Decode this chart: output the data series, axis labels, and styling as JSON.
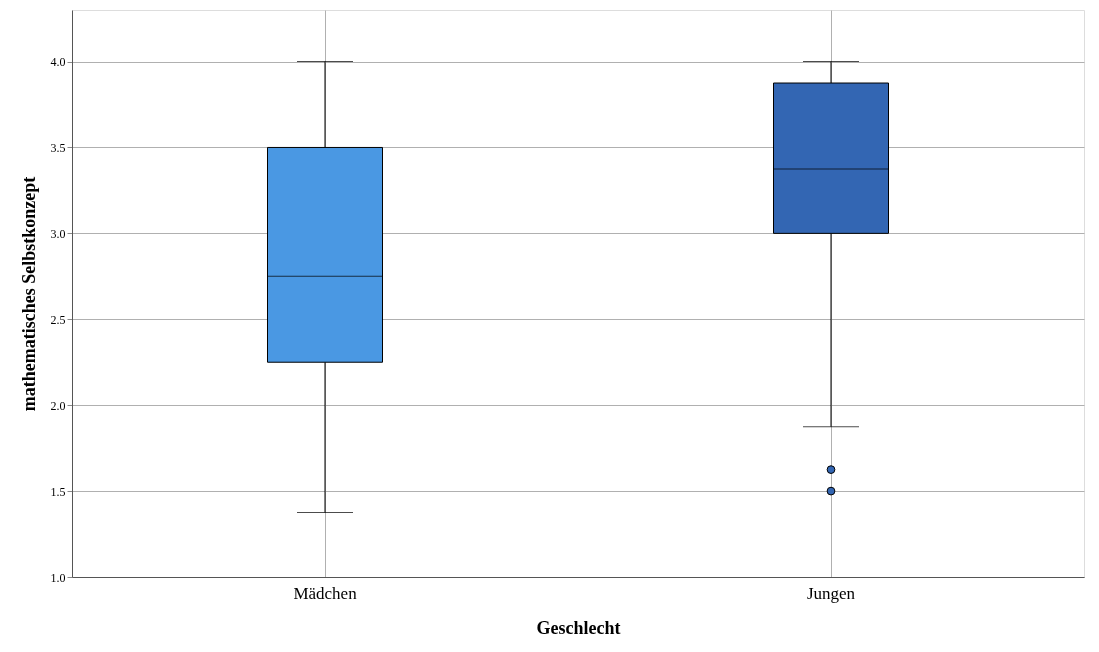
{
  "chart_data": {
    "type": "box",
    "xlabel": "Geschlecht",
    "ylabel": "mathematisches Selbstkonzept",
    "categories": [
      "Mädchen",
      "Jungen"
    ],
    "colors": [
      "#4a98e3",
      "#3366b3"
    ],
    "boxes": [
      {
        "low": 1.375,
        "q1": 2.25,
        "median": 2.75,
        "q3": 3.5,
        "high": 4.0
      },
      {
        "low": 1.875,
        "q1": 3.0,
        "median": 3.375,
        "q3": 3.875,
        "high": 4.0,
        "outliers": [
          1.625,
          1.5
        ]
      }
    ],
    "ylim": [
      1.0,
      4.3
    ],
    "yticks": [
      {
        "value": 1.0,
        "label": "1.0"
      },
      {
        "value": 1.5,
        "label": "1.5"
      },
      {
        "value": 2.0,
        "label": "2.0"
      },
      {
        "value": 2.5,
        "label": "2.5"
      },
      {
        "value": 3.0,
        "label": "3.0"
      },
      {
        "value": 3.5,
        "label": "3.5"
      },
      {
        "value": 4.0,
        "label": "4.0"
      }
    ],
    "grid": true
  }
}
